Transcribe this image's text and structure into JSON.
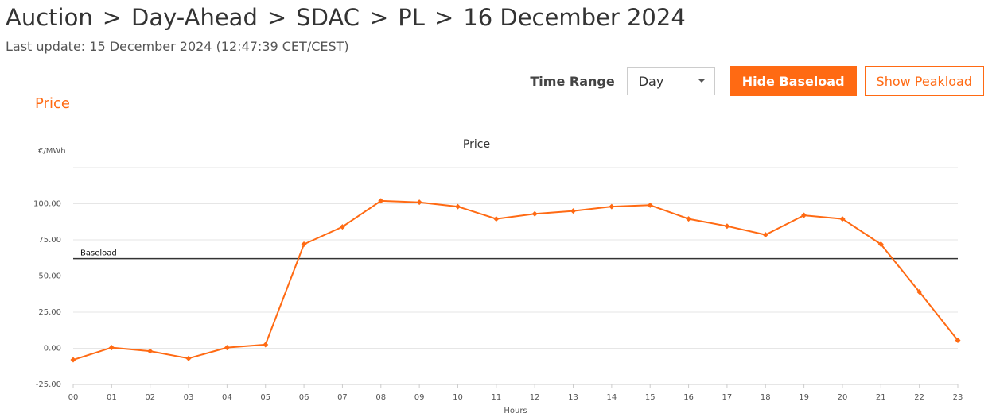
{
  "header": {
    "breadcrumb": [
      "Auction",
      "Day-Ahead",
      "SDAC",
      "PL",
      "16 December 2024"
    ],
    "separator": ">",
    "last_update": "Last update: 15 December 2024 (12:47:39 CET/CEST)"
  },
  "controls": {
    "time_range_label": "Time Range",
    "time_range_value": "Day",
    "hide_baseload_label": "Hide Baseload",
    "show_peakload_label": "Show Peakload"
  },
  "section": {
    "title": "Price"
  },
  "colors": {
    "accent": "#ff6a13",
    "series": "#ff6a13",
    "baseload": "#333333",
    "grid": "#e6e6e6"
  },
  "chart_data": {
    "type": "line",
    "title": "Price",
    "ylabel": "€/MWh",
    "xlabel": "Hours",
    "categories": [
      "00",
      "01",
      "02",
      "03",
      "04",
      "05",
      "06",
      "07",
      "08",
      "09",
      "10",
      "11",
      "12",
      "13",
      "14",
      "15",
      "16",
      "17",
      "18",
      "19",
      "20",
      "21",
      "22",
      "23"
    ],
    "series": [
      {
        "values": [
          -8,
          0.5,
          -2,
          -7,
          0.5,
          2.5,
          72,
          84,
          102,
          101,
          98,
          89.5,
          93,
          95,
          98,
          99,
          89.5,
          84.5,
          78.5,
          92,
          89.5,
          72,
          39,
          5.5
        ]
      }
    ],
    "baseload": {
      "label": "Baseload",
      "value": 62
    },
    "yticks": [
      -25,
      0,
      25,
      50,
      75,
      100
    ],
    "ytick_labels": [
      "-25.00",
      "0.00",
      "25.00",
      "50.00",
      "75.00",
      "100.00"
    ],
    "ylim": [
      -25,
      125
    ],
    "grid": true,
    "legend": "none"
  }
}
